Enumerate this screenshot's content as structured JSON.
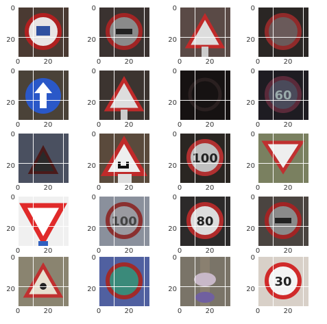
{
  "figure": {
    "rows": 5,
    "cols": 4,
    "axis_ticks": {
      "x": [
        "0",
        "20"
      ],
      "y": [
        "0",
        "20"
      ]
    }
  },
  "panels": [
    {
      "sign": "no-entry-trucks-round",
      "bg": "#4a3a32"
    },
    {
      "sign": "no-overtaking-round",
      "bg": "#3a3230"
    },
    {
      "sign": "warning-triangle",
      "bg": "#5a4a46"
    },
    {
      "sign": "round-prohibitory",
      "bg": "#2a2624"
    },
    {
      "sign": "mandatory-ahead-blue",
      "bg": "#4a4238"
    },
    {
      "sign": "warning-triangle",
      "bg": "#3c3430"
    },
    {
      "sign": "dark-round",
      "bg": "#161212"
    },
    {
      "sign": "speed-limit-60",
      "bg": "#1e1c22"
    },
    {
      "sign": "warning-triangle-dark",
      "bg": "#4a5060"
    },
    {
      "sign": "warning-curve",
      "bg": "#5a4a3c"
    },
    {
      "sign": "speed-limit-100",
      "bg": "#2a2622"
    },
    {
      "sign": "yield",
      "bg": "#6a705a"
    },
    {
      "sign": "yield-bright",
      "bg": "#f0f0f0"
    },
    {
      "sign": "speed-limit-100-blur",
      "bg": "#8a909c"
    },
    {
      "sign": "speed-limit-80",
      "bg": "#2c2a2a"
    },
    {
      "sign": "no-overtaking-round",
      "bg": "#4a4440"
    },
    {
      "sign": "warning-triangle-bright",
      "bg": "#8a8470"
    },
    {
      "sign": "round-blue-bg",
      "bg": "#5060a0"
    },
    {
      "sign": "blurred-pole",
      "bg": "#7a7468"
    },
    {
      "sign": "speed-limit-30",
      "bg": "#d8d0c8"
    }
  ],
  "labels": {
    "sign_100": "100",
    "sign_80": "80",
    "sign_60": "60",
    "sign_30": "30"
  }
}
